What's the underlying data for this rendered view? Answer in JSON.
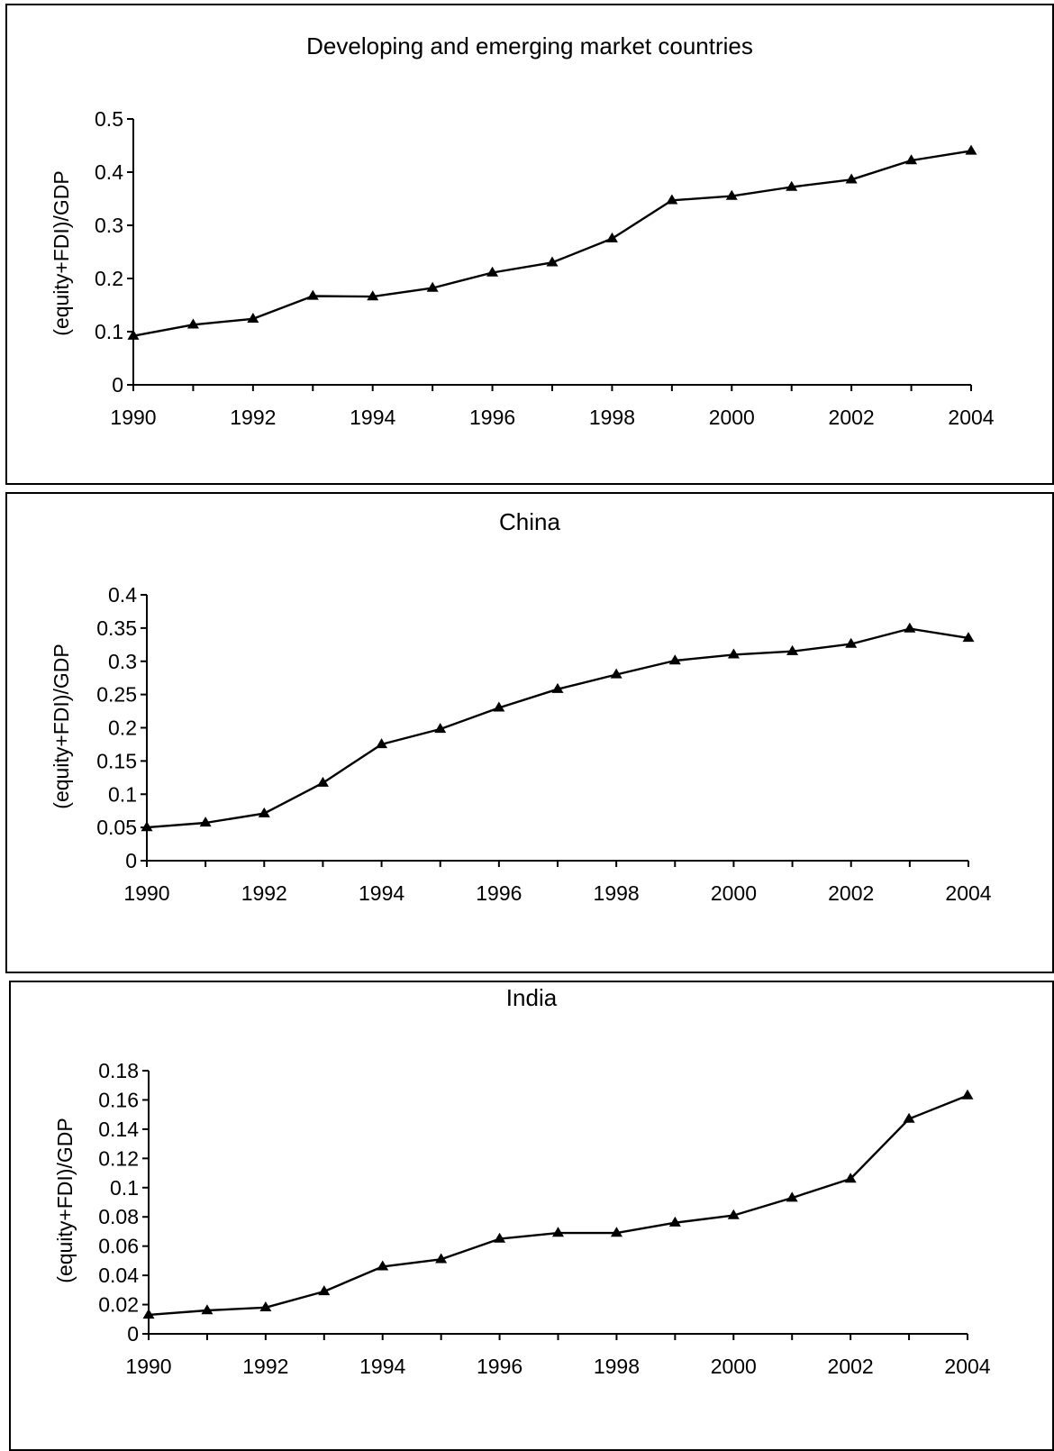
{
  "chart_data": [
    {
      "type": "line",
      "title": "Developing and emerging market countries",
      "ylabel": "(equity+FDI)/GDP",
      "xlabel": "",
      "xlim": [
        1990,
        2004
      ],
      "ylim": [
        0,
        0.5
      ],
      "yticks": [
        "0",
        "0.1",
        "0.2",
        "0.3",
        "0.4",
        "0.5"
      ],
      "xticks": [
        "1990",
        "1992",
        "1994",
        "1996",
        "1998",
        "2000",
        "2002",
        "2004"
      ],
      "grid": false,
      "marker": "triangle",
      "series": [
        {
          "x": [
            1990,
            1991,
            1992,
            1993,
            1994,
            1995,
            1996,
            1997,
            1998,
            1999,
            2000,
            2001,
            2002,
            2003,
            2004
          ],
          "values": [
            0.092,
            0.113,
            0.124,
            0.167,
            0.166,
            0.182,
            0.211,
            0.23,
            0.275,
            0.347,
            0.355,
            0.372,
            0.386,
            0.422,
            0.44
          ]
        }
      ]
    },
    {
      "type": "line",
      "title": "China",
      "ylabel": "(equity+FDI)/GDP",
      "xlabel": "",
      "xlim": [
        1990,
        2004
      ],
      "ylim": [
        0,
        0.4
      ],
      "yticks": [
        "0",
        "0.05",
        "0.1",
        "0.15",
        "0.2",
        "0.25",
        "0.3",
        "0.35",
        "0.4"
      ],
      "xticks": [
        "1990",
        "1992",
        "1994",
        "1996",
        "1998",
        "2000",
        "2002",
        "2004"
      ],
      "grid": false,
      "marker": "triangle",
      "series": [
        {
          "x": [
            1990,
            1991,
            1992,
            1993,
            1994,
            1995,
            1996,
            1997,
            1998,
            1999,
            2000,
            2001,
            2002,
            2003,
            2004
          ],
          "values": [
            0.05,
            0.057,
            0.071,
            0.117,
            0.175,
            0.198,
            0.23,
            0.258,
            0.28,
            0.301,
            0.31,
            0.315,
            0.326,
            0.349,
            0.335
          ]
        }
      ]
    },
    {
      "type": "line",
      "title": "India",
      "ylabel": "(equity+FDI)/GDP",
      "xlabel": "",
      "xlim": [
        1990,
        2004
      ],
      "ylim": [
        0,
        0.18
      ],
      "yticks": [
        "0",
        "0.02",
        "0.04",
        "0.06",
        "0.08",
        "0.1",
        "0.12",
        "0.14",
        "0.16",
        "0.18"
      ],
      "xticks": [
        "1990",
        "1992",
        "1994",
        "1996",
        "1998",
        "2000",
        "2002",
        "2004"
      ],
      "grid": false,
      "marker": "triangle",
      "series": [
        {
          "x": [
            1990,
            1991,
            1992,
            1993,
            1994,
            1995,
            1996,
            1997,
            1998,
            1999,
            2000,
            2001,
            2002,
            2003,
            2004
          ],
          "values": [
            0.013,
            0.016,
            0.018,
            0.029,
            0.046,
            0.051,
            0.065,
            0.069,
            0.069,
            0.076,
            0.081,
            0.093,
            0.106,
            0.147,
            0.163
          ]
        }
      ]
    }
  ]
}
